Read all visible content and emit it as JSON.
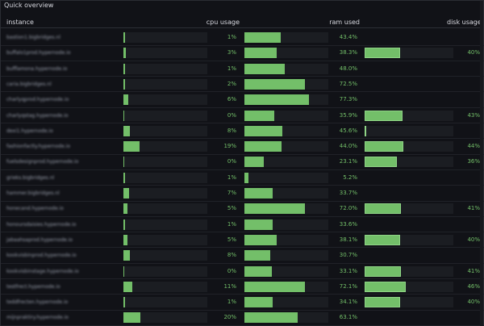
{
  "panel": {
    "title": "Quick overview",
    "menu_icon": "kebab-menu-icon"
  },
  "table": {
    "columns": [
      "instance",
      "cpu usage",
      "ram used",
      "disk usage"
    ],
    "rows": [
      {
        "instance": "bastion1.bigbridges.nl",
        "cpu_label": "1%",
        "cpu": 1,
        "ram_label": "43.4%",
        "ram": 43.4,
        "disk_label": "",
        "disk": null
      },
      {
        "instance": "buffalo1prod.hypernode.io",
        "cpu_label": "3%",
        "cpu": 3,
        "ram_label": "38.3%",
        "ram": 38.3,
        "disk_label": "40%",
        "disk": 40
      },
      {
        "instance": "bufflamona.hypernode.io",
        "cpu_label": "1%",
        "cpu": 1,
        "ram_label": "48.0%",
        "ram": 48.0,
        "disk_label": "",
        "disk": null
      },
      {
        "instance": "caria.bigbridges.nl",
        "cpu_label": "2%",
        "cpu": 2,
        "ram_label": "72.5%",
        "ram": 72.5,
        "disk_label": "",
        "disk": null
      },
      {
        "instance": "charlyqprod.hypernode.io",
        "cpu_label": "6%",
        "cpu": 6,
        "ram_label": "77.3%",
        "ram": 77.3,
        "disk_label": "",
        "disk": null
      },
      {
        "instance": "charlyqstag.hypernode.io",
        "cpu_label": "0%",
        "cpu": 0,
        "ram_label": "35.9%",
        "ram": 35.9,
        "disk_label": "43%",
        "disk": 43
      },
      {
        "instance": "dexi1.hypernode.io",
        "cpu_label": "8%",
        "cpu": 8,
        "ram_label": "45.6%",
        "ram": 45.6,
        "disk_label": "",
        "disk": 0
      },
      {
        "instance": "fashionfactly.hypernode.io",
        "cpu_label": "19%",
        "cpu": 19,
        "ram_label": "44.0%",
        "ram": 44.0,
        "disk_label": "44%",
        "disk": 44
      },
      {
        "instance": "fuelsdesignprod.hypernode.io",
        "cpu_label": "0%",
        "cpu": 0,
        "ram_label": "23.1%",
        "ram": 23.1,
        "disk_label": "36%",
        "disk": 36
      },
      {
        "instance": "grieks.bigbridges.nl",
        "cpu_label": "1%",
        "cpu": 1,
        "ram_label": "5.2%",
        "ram": 5.2,
        "disk_label": "",
        "disk": null
      },
      {
        "instance": "hammer.bigbridges.nl",
        "cpu_label": "7%",
        "cpu": 7,
        "ram_label": "33.7%",
        "ram": 33.7,
        "disk_label": "",
        "disk": null
      },
      {
        "instance": "honecand.hypernode.io",
        "cpu_label": "5%",
        "cpu": 5,
        "ram_label": "72.0%",
        "ram": 72.0,
        "disk_label": "41%",
        "disk": 41
      },
      {
        "instance": "honoursdaisies.hypernode.io",
        "cpu_label": "1%",
        "cpu": 1,
        "ram_label": "33.6%",
        "ram": 33.6,
        "disk_label": "",
        "disk": null
      },
      {
        "instance": "jabaahsaprod.hypernode.io",
        "cpu_label": "5%",
        "cpu": 5,
        "ram_label": "38.1%",
        "ram": 38.1,
        "disk_label": "40%",
        "disk": 40
      },
      {
        "instance": "kookvisbinprod.hypernode.io",
        "cpu_label": "8%",
        "cpu": 8,
        "ram_label": "30.7%",
        "ram": 30.7,
        "disk_label": "",
        "disk": null
      },
      {
        "instance": "kookvisbinstage.hypernode.io",
        "cpu_label": "0%",
        "cpu": 0,
        "ram_label": "33.1%",
        "ram": 33.1,
        "disk_label": "41%",
        "disk": 41
      },
      {
        "instance": "testfrect.hypernode.io",
        "cpu_label": "11%",
        "cpu": 11,
        "ram_label": "72.1%",
        "ram": 72.1,
        "disk_label": "46%",
        "disk": 46
      },
      {
        "instance": "teddfrecten.hypernode.io",
        "cpu_label": "1%",
        "cpu": 1,
        "ram_label": "34.1%",
        "ram": 34.1,
        "disk_label": "40%",
        "disk": 40
      },
      {
        "instance": "mijnpraktiry.hypernode.io",
        "cpu_label": "20%",
        "cpu": 20,
        "ram_label": "63.1%",
        "ram": 63.1,
        "disk_label": "",
        "disk": null
      }
    ]
  },
  "colors": {
    "accent": "#73bf69",
    "track": "#1b1d22",
    "background": "#111217"
  }
}
